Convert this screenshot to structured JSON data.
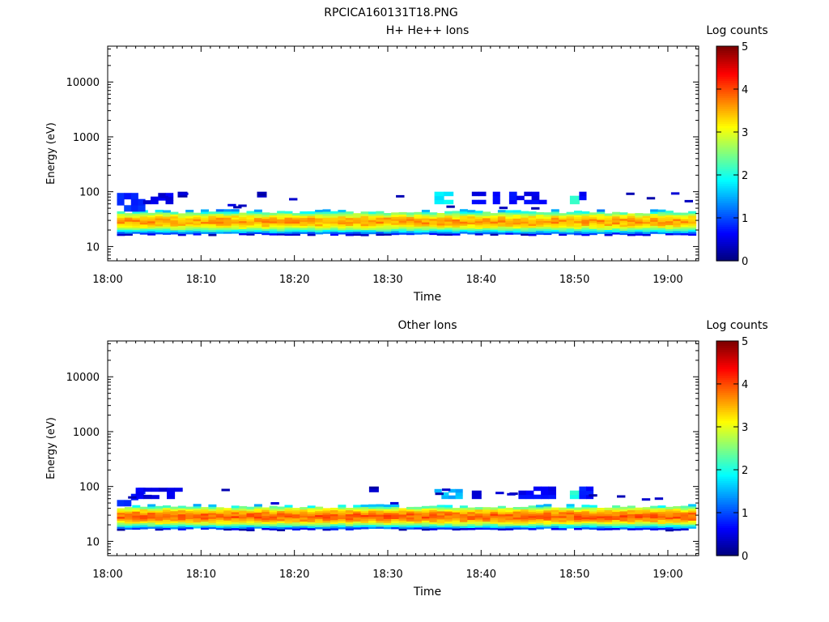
{
  "figure_title": "RPCICA160131T18.PNG",
  "chart_data": [
    {
      "type": "heatmap",
      "title": "H+ He++ Ions",
      "xlabel": "Time",
      "ylabel": "Energy (eV)",
      "x_tick_labels": [
        "18:00",
        "18:10",
        "18:20",
        "18:30",
        "18:40",
        "18:50",
        "19:00"
      ],
      "x_tick_minutes": [
        0,
        10,
        20,
        30,
        40,
        50,
        60
      ],
      "xlim_minutes": [
        0,
        63.3
      ],
      "y_scale": "log",
      "ylim": [
        5.5,
        45000
      ],
      "y_tick_labels": [
        "10",
        "100",
        "1000",
        "10000"
      ],
      "y_tick_values": [
        10,
        100,
        1000,
        10000
      ],
      "colorbar": {
        "label": "Log counts",
        "range": [
          0,
          5
        ],
        "tick_labels": [
          "0",
          "1",
          "2",
          "3",
          "4",
          "5"
        ],
        "colormap": "jet"
      },
      "band": {
        "energy_low_eV": 16,
        "energy_high_eV": 44,
        "peak_energy_eV": 29,
        "peak_log_counts": 3.6,
        "time_range_minutes": [
          1,
          63
        ]
      },
      "upper_patches": [
        {
          "time_minutes": [
            1,
            4
          ],
          "energy_eV": [
            44,
            95
          ],
          "log_counts": 0.8
        },
        {
          "time_minutes": [
            3,
            7
          ],
          "energy_eV": [
            60,
            95
          ],
          "log_counts": 0.5
        },
        {
          "time_minutes": [
            7.5,
            8.5
          ],
          "energy_eV": [
            80,
            100
          ],
          "log_counts": 0.3
        },
        {
          "time_minutes": [
            16,
            17
          ],
          "energy_eV": [
            80,
            100
          ],
          "log_counts": 0.3
        },
        {
          "time_minutes": [
            35,
            37
          ],
          "energy_eV": [
            60,
            100
          ],
          "log_counts": 1.8
        },
        {
          "time_minutes": [
            39,
            42
          ],
          "energy_eV": [
            60,
            100
          ],
          "log_counts": 0.6
        },
        {
          "time_minutes": [
            43,
            47
          ],
          "energy_eV": [
            60,
            100
          ],
          "log_counts": 0.6
        },
        {
          "time_minutes": [
            49.5,
            50.5
          ],
          "energy_eV": [
            60,
            100
          ],
          "log_counts": 2.2
        },
        {
          "time_minutes": [
            50.5,
            52
          ],
          "energy_eV": [
            60,
            100
          ],
          "log_counts": 0.7
        }
      ]
    },
    {
      "type": "heatmap",
      "title": "Other Ions",
      "xlabel": "Time",
      "ylabel": "Energy (eV)",
      "x_tick_labels": [
        "18:00",
        "18:10",
        "18:20",
        "18:30",
        "18:40",
        "18:50",
        "19:00"
      ],
      "x_tick_minutes": [
        0,
        10,
        20,
        30,
        40,
        50,
        60
      ],
      "xlim_minutes": [
        0,
        63.3
      ],
      "y_scale": "log",
      "ylim": [
        5.5,
        45000
      ],
      "y_tick_labels": [
        "10",
        "100",
        "1000",
        "10000"
      ],
      "y_tick_values": [
        10,
        100,
        1000,
        10000
      ],
      "colorbar": {
        "label": "Log counts",
        "range": [
          0,
          5
        ],
        "tick_labels": [
          "0",
          "1",
          "2",
          "3",
          "4",
          "5"
        ],
        "colormap": "jet"
      },
      "band": {
        "energy_low_eV": 16,
        "energy_high_eV": 44,
        "peak_energy_eV": 29,
        "peak_log_counts": 3.9,
        "time_range_minutes": [
          1,
          63
        ]
      },
      "upper_patches": [
        {
          "time_minutes": [
            1,
            4
          ],
          "energy_eV": [
            44,
            95
          ],
          "log_counts": 0.8
        },
        {
          "time_minutes": [
            3,
            8
          ],
          "energy_eV": [
            60,
            95
          ],
          "log_counts": 0.5
        },
        {
          "time_minutes": [
            28,
            29
          ],
          "energy_eV": [
            80,
            100
          ],
          "log_counts": 0.3
        },
        {
          "time_minutes": [
            35,
            38
          ],
          "energy_eV": [
            60,
            90
          ],
          "log_counts": 1.5
        },
        {
          "time_minutes": [
            39,
            41
          ],
          "energy_eV": [
            60,
            100
          ],
          "log_counts": 0.5
        },
        {
          "time_minutes": [
            44,
            48
          ],
          "energy_eV": [
            60,
            100
          ],
          "log_counts": 0.6
        },
        {
          "time_minutes": [
            49.5,
            50.5
          ],
          "energy_eV": [
            60,
            100
          ],
          "log_counts": 2.0
        },
        {
          "time_minutes": [
            50.5,
            52
          ],
          "energy_eV": [
            60,
            100
          ],
          "log_counts": 0.7
        }
      ]
    }
  ]
}
